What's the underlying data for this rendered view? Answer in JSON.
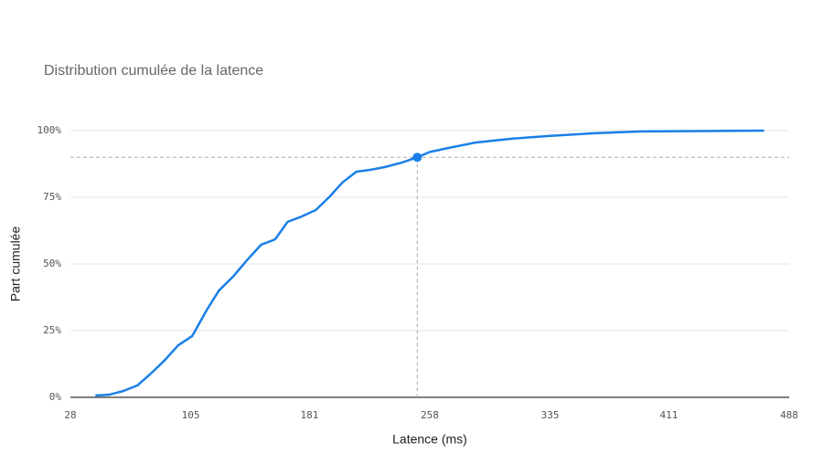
{
  "chart_data": {
    "type": "line",
    "title": "Distribution cumulée de la latence",
    "x_label": "Latence (ms)",
    "y_label": "Part cumulée",
    "x": [
      44,
      53,
      62,
      71,
      80,
      88,
      97,
      106,
      115,
      123,
      132,
      141,
      150,
      159,
      167,
      176,
      185,
      194,
      202,
      211,
      220,
      229,
      240,
      250,
      258,
      270,
      287,
      311,
      334,
      363,
      393,
      472
    ],
    "series": [
      {
        "name": "Latence",
        "color": "#1a7fe8",
        "values": [
          0.7,
          1,
          2.4,
          4.5,
          9.2,
          13.7,
          19.5,
          23,
          32.5,
          40,
          45.2,
          51.4,
          57.2,
          59.2,
          65.8,
          67.8,
          70.2,
          75.3,
          80.5,
          84.6,
          85.3,
          86.3,
          88,
          90,
          92,
          93.5,
          95.5,
          97,
          98,
          99,
          99.7,
          100
        ]
      }
    ],
    "reference_point": {
      "x": 250,
      "y": 90
    },
    "xlim": [
      28,
      488
    ],
    "xticks": [
      28,
      105,
      181,
      258,
      335,
      411,
      488
    ],
    "ylim": [
      0,
      100
    ],
    "yticks": [
      {
        "value": 0,
        "label": "0%"
      },
      {
        "value": 25,
        "label": "25%"
      },
      {
        "value": 50,
        "label": "50%"
      },
      {
        "value": 75,
        "label": "75%"
      },
      {
        "value": 100,
        "label": "100%"
      }
    ],
    "grid": true
  }
}
